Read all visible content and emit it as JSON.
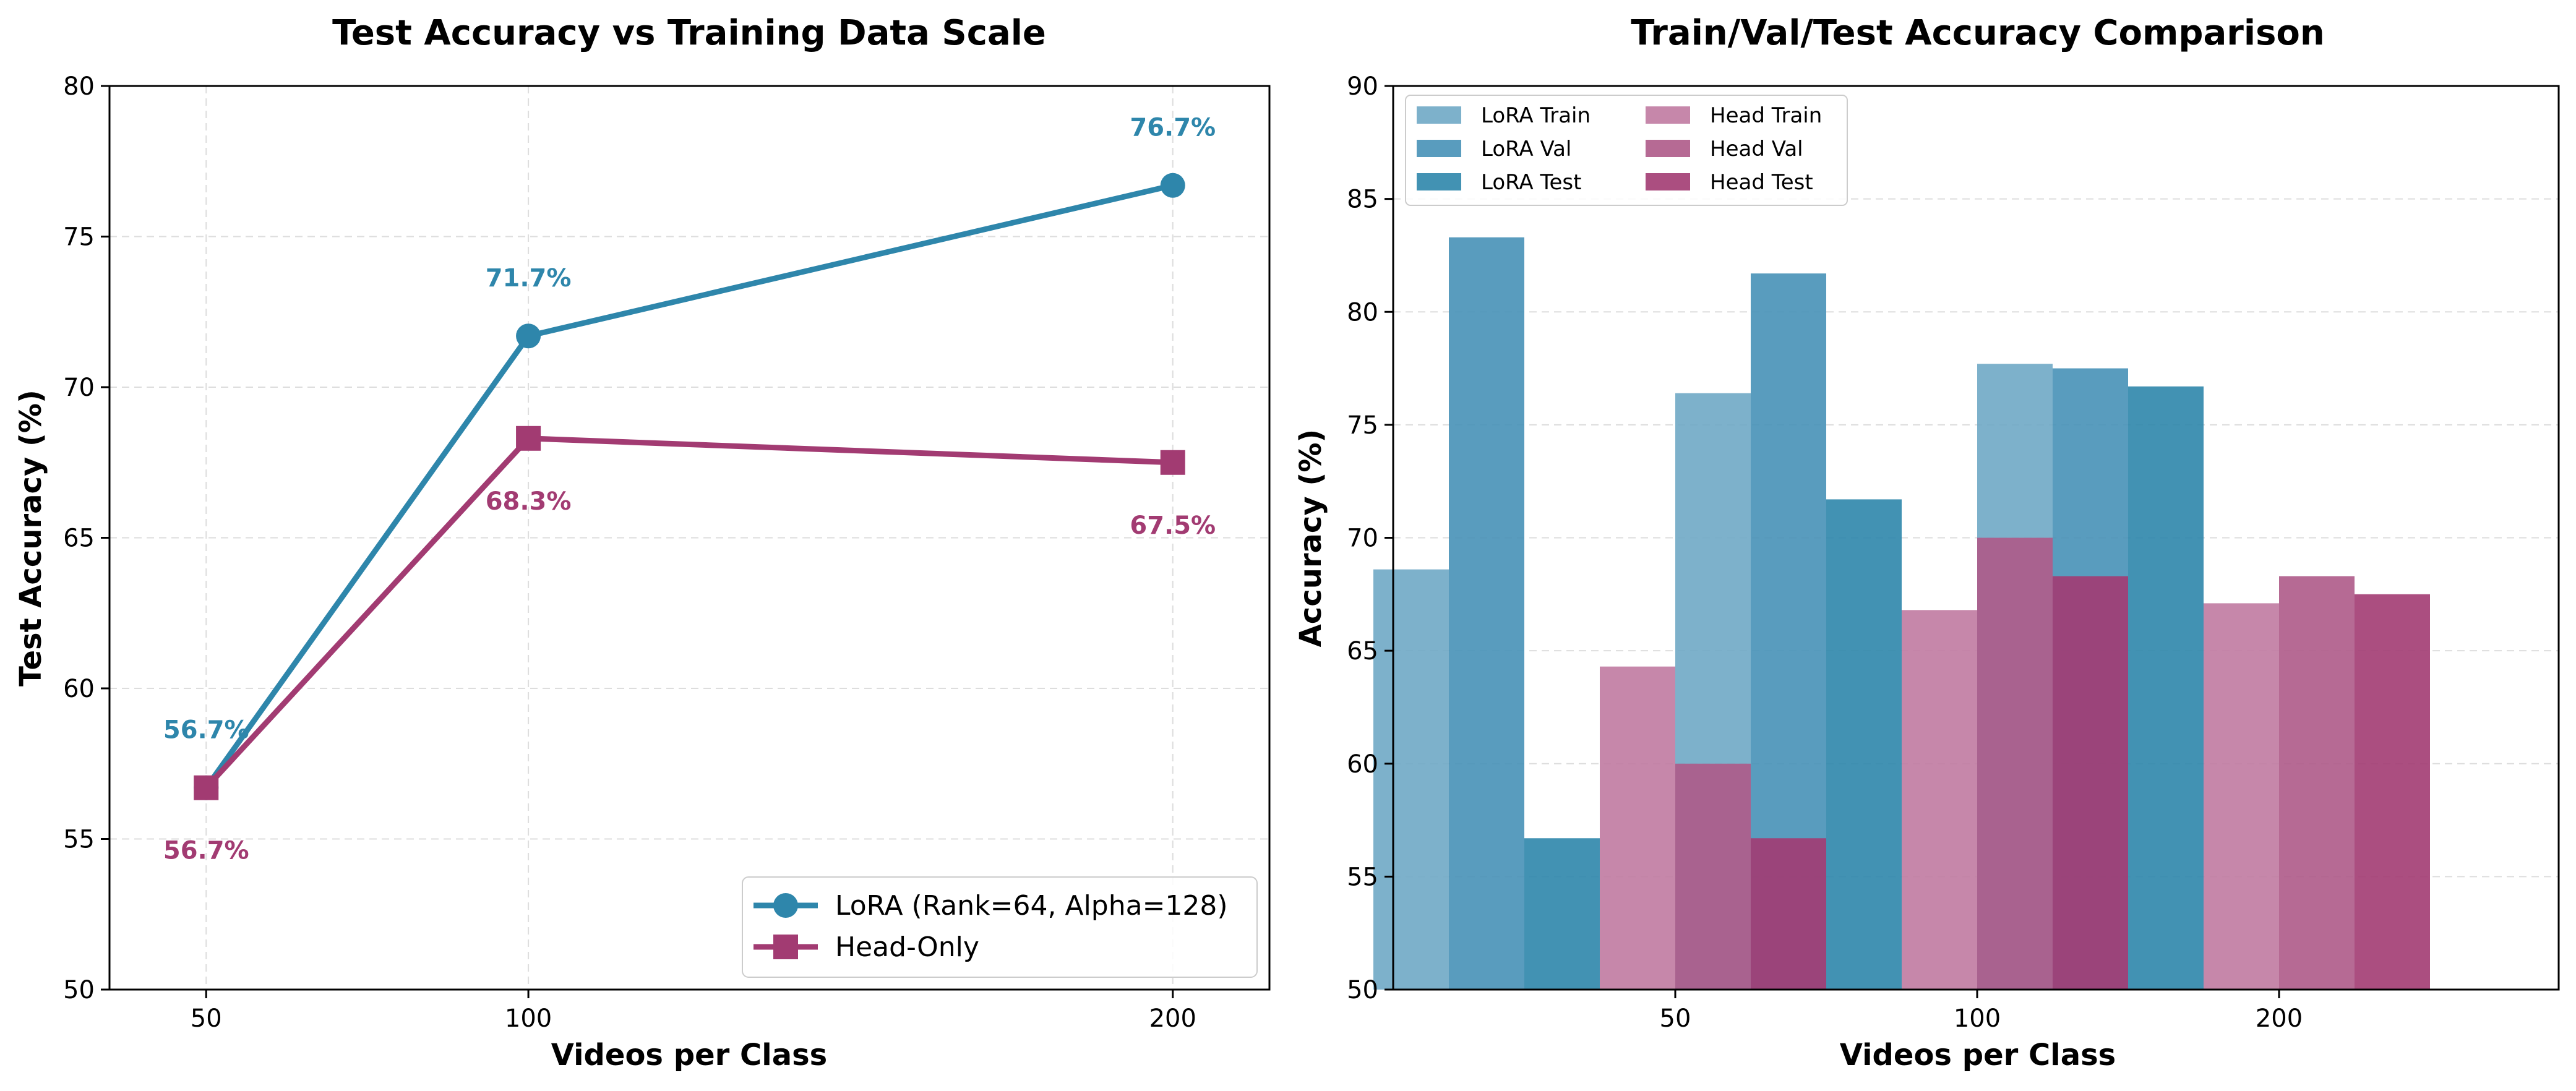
{
  "colors": {
    "lora": "#2e86ab",
    "head": "#a23b72",
    "grid": "#dddddd"
  },
  "chart_data": [
    {
      "type": "line",
      "title": "Test Accuracy vs Training Data Scale",
      "xlabel": "Videos per Class",
      "ylabel": "Test Accuracy (%)",
      "x": [
        50,
        100,
        200
      ],
      "xticks": [
        "50",
        "100",
        "200"
      ],
      "ylim": [
        50,
        80
      ],
      "yticks": [
        50,
        55,
        60,
        65,
        70,
        75,
        80
      ],
      "grid": true,
      "legend_position": "lower-right",
      "series": [
        {
          "name": "LoRA (Rank=64, Alpha=128)",
          "values": [
            56.7,
            71.7,
            76.7
          ],
          "labels": [
            "56.7%",
            "71.7%",
            "76.7%"
          ],
          "marker": "circle"
        },
        {
          "name": "Head-Only",
          "values": [
            56.7,
            68.3,
            67.5
          ],
          "labels": [
            "56.7%",
            "68.3%",
            "67.5%"
          ],
          "marker": "square"
        }
      ]
    },
    {
      "type": "bar",
      "title": "Train/Val/Test Accuracy Comparison",
      "xlabel": "Videos per Class",
      "ylabel": "Accuracy (%)",
      "categories": [
        "50",
        "100",
        "200"
      ],
      "ylim": [
        50,
        90
      ],
      "yticks": [
        50,
        55,
        60,
        65,
        70,
        75,
        80,
        85,
        90
      ],
      "grid": true,
      "legend_position": "top-left",
      "series": [
        {
          "name": "LoRA Train",
          "values": [
            68.6,
            76.4,
            77.7
          ],
          "color": "#6fa9c5"
        },
        {
          "name": "LoRA Val",
          "values": [
            83.3,
            81.7,
            77.5
          ],
          "color": "#4791b7"
        },
        {
          "name": "LoRA Test",
          "values": [
            56.7,
            71.7,
            76.7
          ],
          "color": "#2e86ab"
        },
        {
          "name": "Head Train",
          "values": [
            64.3,
            66.8,
            67.1
          ],
          "color": "#c07aa1"
        },
        {
          "name": "Head Val",
          "values": [
            60.0,
            70.0,
            68.3
          ],
          "color": "#ae5a88"
        },
        {
          "name": "Head Test",
          "values": [
            56.7,
            68.3,
            67.5
          ],
          "color": "#a23b72"
        }
      ]
    }
  ]
}
